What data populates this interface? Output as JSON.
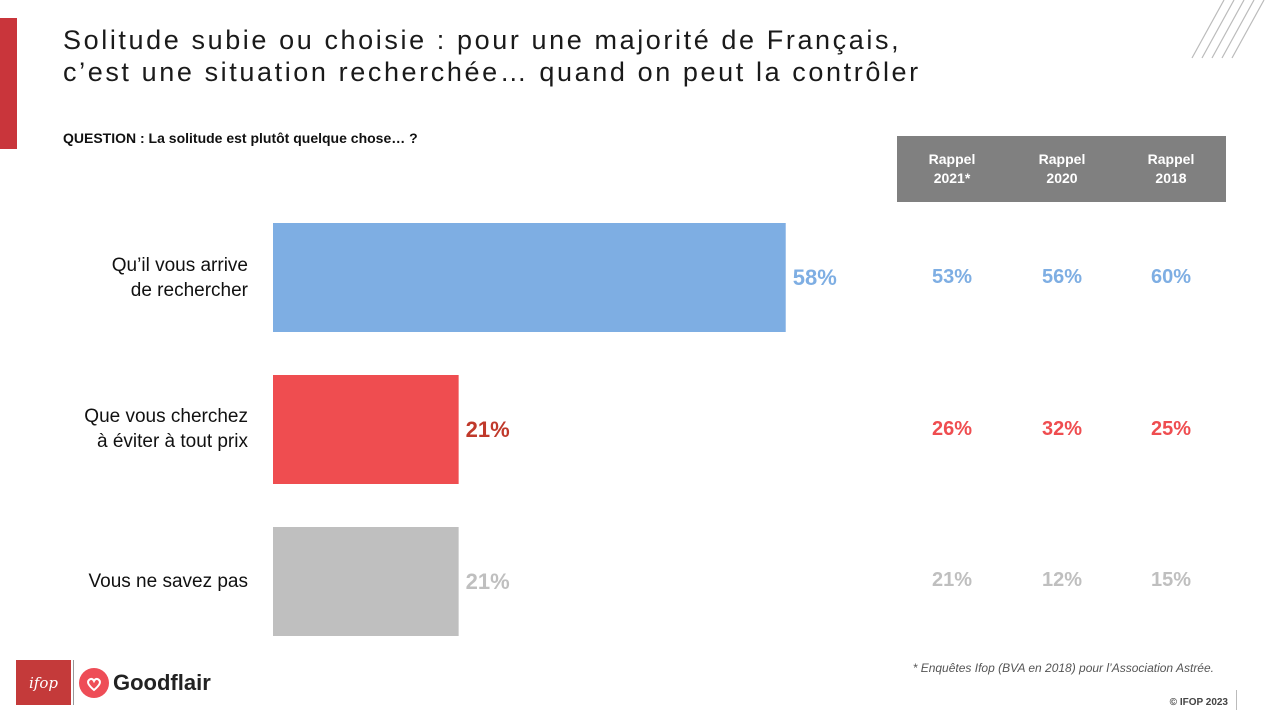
{
  "title": {
    "line1": "Solitude subie ou choisie : pour une majorité de Français,",
    "line2": "c’est une situation recherchée… quand on peut la contrôler"
  },
  "question": "QUESTION : La solitude est plutôt quelque chose… ?",
  "recall_headers": [
    {
      "line1": "Rappel",
      "line2": "2021*"
    },
    {
      "line1": "Rappel",
      "line2": "2020"
    },
    {
      "line1": "Rappel",
      "line2": "2018"
    }
  ],
  "chart_data": {
    "type": "bar",
    "orientation": "horizontal",
    "categories": [
      {
        "line1": "Qu’il vous arrive",
        "line2": "de rechercher"
      },
      {
        "line1": "Que vous cherchez",
        "line2": "à éviter à tout prix"
      },
      {
        "line1": "Vous ne savez pas",
        "line2": ""
      }
    ],
    "values": [
      58,
      21,
      21
    ],
    "value_labels": [
      "58%",
      "21%",
      "21%"
    ],
    "colors": [
      "#7eaee3",
      "#ef4d50",
      "#bfbfbf"
    ],
    "label_colors": [
      "#7eaee3",
      "#c0392b",
      "#bfbfbf"
    ],
    "xlim": [
      0,
      100
    ],
    "recall_series": [
      {
        "name": "Rappel 2021*",
        "values": [
          53,
          26,
          21
        ],
        "labels": [
          "53%",
          "26%",
          "21%"
        ]
      },
      {
        "name": "Rappel 2020",
        "values": [
          56,
          32,
          12
        ],
        "labels": [
          "56%",
          "32%",
          "12%"
        ]
      },
      {
        "name": "Rappel 2018",
        "values": [
          60,
          25,
          15
        ],
        "labels": [
          "60%",
          "25%",
          "15%"
        ]
      }
    ],
    "recall_colors": [
      "#7eaee3",
      "#ef4d50",
      "#bfbfbf"
    ]
  },
  "footnote": "* Enquêtes Ifop (BVA en 2018) pour l’Association Astrée.",
  "copyright": "© IFOP 2023",
  "logos": {
    "ifop": "ifop",
    "goodflair": "Goodflair"
  }
}
